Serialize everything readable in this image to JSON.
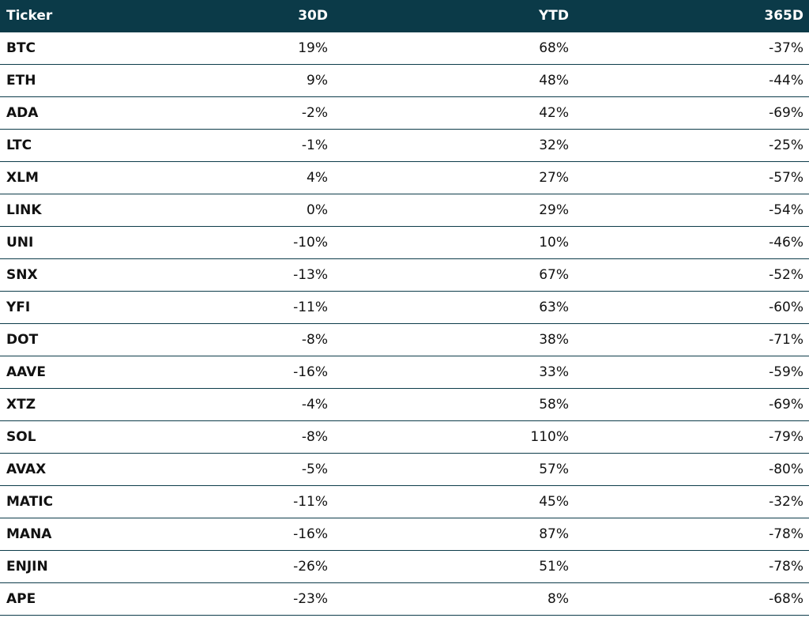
{
  "table": {
    "columns": [
      "Ticker",
      "30D",
      "YTD",
      "365D"
    ],
    "rows": [
      [
        "BTC",
        "19%",
        "68%",
        "-37%"
      ],
      [
        "ETH",
        "9%",
        "48%",
        "-44%"
      ],
      [
        "ADA",
        "-2%",
        "42%",
        "-69%"
      ],
      [
        "LTC",
        "-1%",
        "32%",
        "-25%"
      ],
      [
        "XLM",
        "4%",
        "27%",
        "-57%"
      ],
      [
        "LINK",
        "0%",
        "29%",
        "-54%"
      ],
      [
        "UNI",
        "-10%",
        "10%",
        "-46%"
      ],
      [
        "SNX",
        "-13%",
        "67%",
        "-52%"
      ],
      [
        "YFI",
        "-11%",
        "63%",
        "-60%"
      ],
      [
        "DOT",
        "-8%",
        "38%",
        "-71%"
      ],
      [
        "AAVE",
        "-16%",
        "33%",
        "-59%"
      ],
      [
        "XTZ",
        "-4%",
        "58%",
        "-69%"
      ],
      [
        "SOL",
        "-8%",
        "110%",
        "-79%"
      ],
      [
        "AVAX",
        "-5%",
        "57%",
        "-80%"
      ],
      [
        "MATIC",
        "-11%",
        "45%",
        "-32%"
      ],
      [
        "MANA",
        "-16%",
        "87%",
        "-78%"
      ],
      [
        "ENJIN",
        "-26%",
        "51%",
        "-78%"
      ],
      [
        "APE",
        "-23%",
        "8%",
        "-68%"
      ]
    ]
  }
}
